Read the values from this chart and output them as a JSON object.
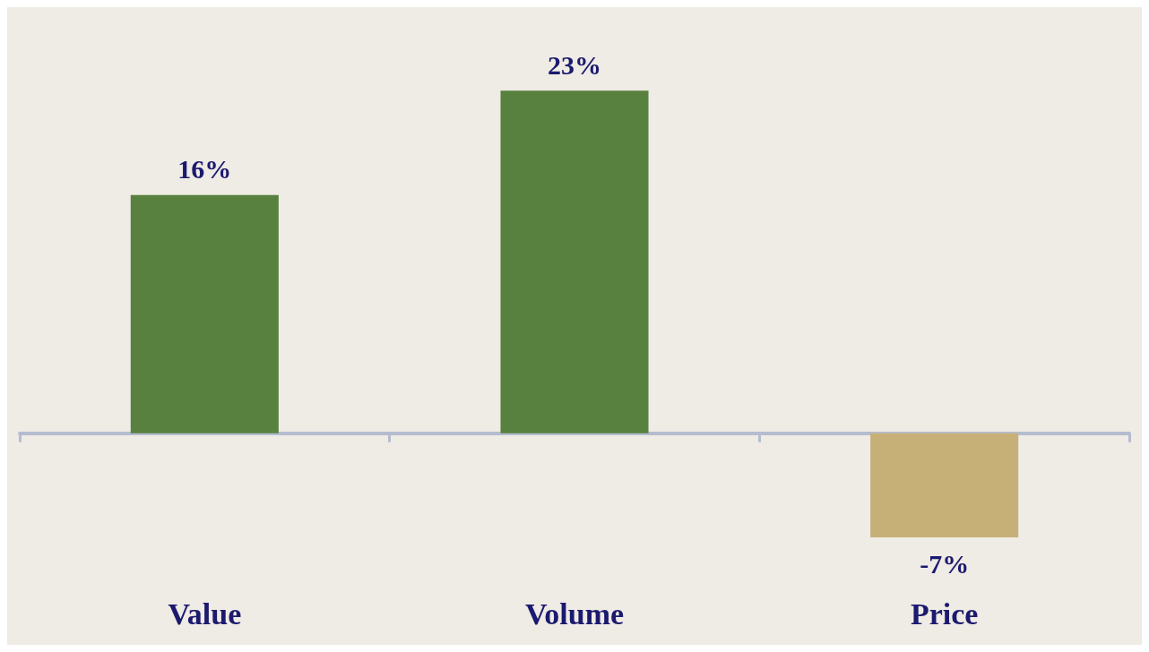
{
  "chart_data": {
    "type": "bar",
    "categories": [
      "Value",
      "Volume",
      "Price"
    ],
    "values": [
      16,
      23,
      -7
    ],
    "value_labels": [
      "16%",
      "23%",
      "-7%"
    ],
    "colors": [
      "#58813f",
      "#58813f",
      "#c6b077"
    ],
    "tick_labels": "x"
  }
}
